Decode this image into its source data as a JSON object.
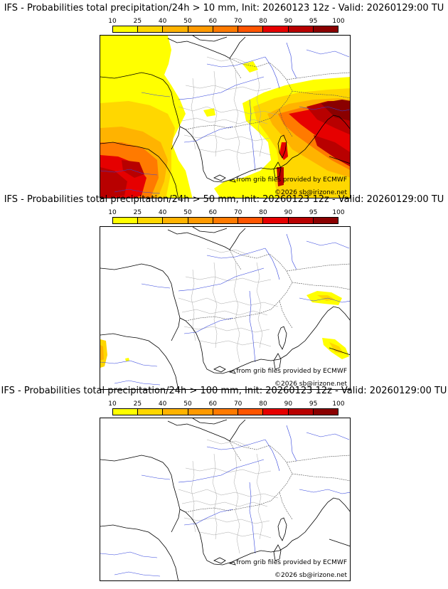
{
  "colorbar": {
    "ticks": [
      "10",
      "25",
      "40",
      "50",
      "60",
      "70",
      "80",
      "90",
      "95",
      "100"
    ],
    "colors": [
      "#ffff00",
      "#ffd700",
      "#ffb300",
      "#ff9a00",
      "#ff7a00",
      "#ff5500",
      "#e60000",
      "#b80000",
      "#8a0000"
    ]
  },
  "panels": [
    {
      "title": "IFS - Probabilities total precipitation/24h > 10 mm, Init: 20260123 12z - Valid: 20260129:00 TU",
      "credit_source": "from grib files provided by ECMWF",
      "credit_copyright": "©2026 sb@irizone.net"
    },
    {
      "title": "IFS - Probabilities total precipitation/24h > 50 mm, Init: 20260123 12z - Valid: 20260129:00 TU",
      "credit_source": "from grib files provided by ECMWF",
      "credit_copyright": "©2026 sb@irizone.net"
    },
    {
      "title": "IFS - Probabilities total precipitation/24h > 100 mm, Init: 20260123 12z - Valid: 20260129:00 TU",
      "credit_source": "from grib files provided by ECMWF",
      "credit_copyright": "©2026 sb@irizone.net"
    }
  ]
}
